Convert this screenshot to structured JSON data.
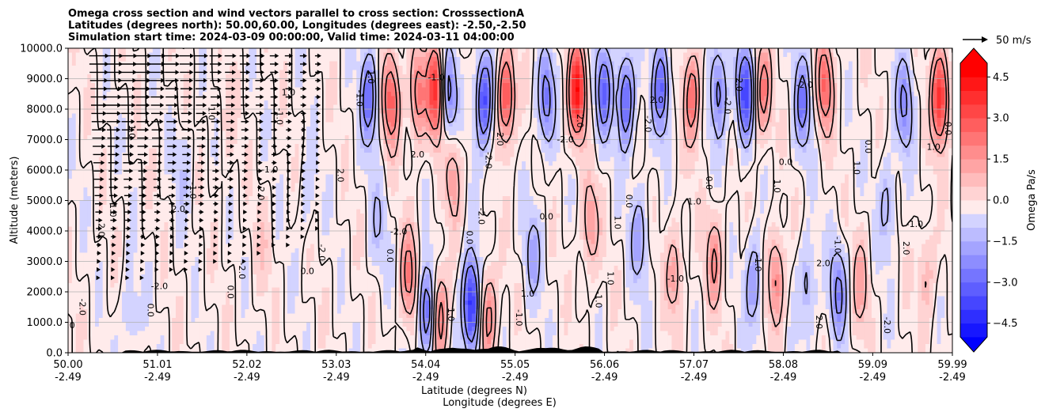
{
  "chart_data": {
    "type": "contourf",
    "title_lines": [
      "Omega cross section and wind vectors parallel to cross section: CrosssectionA",
      "Latitudes (degrees north): 50.00,60.00, Longitudes (degrees east): -2.50,-2.50",
      "Simulation start time: 2024-03-09 00:00:00, Valid time: 2024-03-11 04:00:00"
    ],
    "xlabel_lines": [
      "Latitude (degrees N)",
      "Longitude (degrees E)"
    ],
    "ylabel": "Altitude (meters)",
    "xlim": [
      50.0,
      59.99
    ],
    "ylim": [
      0,
      10000
    ],
    "x_ticks": [
      {
        "lat": "50.00",
        "lon": "-2.49",
        "v": 50.0
      },
      {
        "lat": "51.01",
        "lon": "-2.49",
        "v": 51.01
      },
      {
        "lat": "52.02",
        "lon": "-2.49",
        "v": 52.02
      },
      {
        "lat": "53.03",
        "lon": "-2.49",
        "v": 53.03
      },
      {
        "lat": "54.04",
        "lon": "-2.49",
        "v": 54.04
      },
      {
        "lat": "55.05",
        "lon": "-2.49",
        "v": 55.05
      },
      {
        "lat": "56.06",
        "lon": "-2.49",
        "v": 56.06
      },
      {
        "lat": "57.07",
        "lon": "-2.49",
        "v": 57.07
      },
      {
        "lat": "58.08",
        "lon": "-2.49",
        "v": 58.08
      },
      {
        "lat": "59.09",
        "lon": "-2.49",
        "v": 59.09
      },
      {
        "lat": "59.99",
        "lon": "-2.49",
        "v": 59.99
      }
    ],
    "y_ticks": [
      {
        "label": "0.0",
        "v": 0
      },
      {
        "label": "1000.0",
        "v": 1000
      },
      {
        "label": "2000.0",
        "v": 2000
      },
      {
        "label": "3000.0",
        "v": 3000
      },
      {
        "label": "4000.0",
        "v": 4000
      },
      {
        "label": "5000.0",
        "v": 5000
      },
      {
        "label": "6000.0",
        "v": 6000
      },
      {
        "label": "7000.0",
        "v": 7000
      },
      {
        "label": "8000.0",
        "v": 8000
      },
      {
        "label": "9000.0",
        "v": 9000
      },
      {
        "label": "10000.0",
        "v": 10000
      }
    ],
    "grid": "horizontal",
    "colorbar": {
      "label": "Omega Pa/s",
      "range": [
        -5.0,
        5.0
      ],
      "extend": "both",
      "ticks": [
        {
          "label": "4.5",
          "v": 4.5
        },
        {
          "label": "3.0",
          "v": 3.0
        },
        {
          "label": "1.5",
          "v": 1.5
        },
        {
          "label": "0.0",
          "v": 0.0
        },
        {
          "label": "−1.5",
          "v": -1.5
        },
        {
          "label": "−3.0",
          "v": -3.0
        },
        {
          "label": "−4.5",
          "v": -4.5
        }
      ],
      "colors": {
        "neg": "#0000ff",
        "zero": "#ffffff",
        "pos": "#ff0000"
      }
    },
    "quiver_key": {
      "label": "50 m/s",
      "value": 50
    },
    "contour_labels": [
      "0.0",
      "1.0",
      "-1.0",
      "2.0",
      "-2.0"
    ],
    "features": [
      {
        "lat": 53.4,
        "alt": 8400,
        "omega": -2.8
      },
      {
        "lat": 53.65,
        "alt": 8300,
        "omega": 3.2
      },
      {
        "lat": 53.95,
        "alt": 8500,
        "omega": 2.6
      },
      {
        "lat": 54.15,
        "alt": 8600,
        "omega": 4.2
      },
      {
        "lat": 54.3,
        "alt": 8500,
        "omega": -2.4
      },
      {
        "lat": 54.7,
        "alt": 8300,
        "omega": -3.6
      },
      {
        "lat": 54.95,
        "alt": 8400,
        "omega": 3.6
      },
      {
        "lat": 55.4,
        "alt": 8300,
        "omega": -2.5
      },
      {
        "lat": 55.75,
        "alt": 8600,
        "omega": 4.8
      },
      {
        "lat": 56.05,
        "alt": 8600,
        "omega": -2.8
      },
      {
        "lat": 56.3,
        "alt": 8300,
        "omega": -3.2
      },
      {
        "lat": 56.7,
        "alt": 8700,
        "omega": -2.9
      },
      {
        "lat": 57.05,
        "alt": 8400,
        "omega": 2.8
      },
      {
        "lat": 57.35,
        "alt": 8600,
        "omega": -2.5
      },
      {
        "lat": 57.65,
        "alt": 8500,
        "omega": -3.8
      },
      {
        "lat": 57.85,
        "alt": 8600,
        "omega": 2.5
      },
      {
        "lat": 58.3,
        "alt": 8200,
        "omega": -2.4
      },
      {
        "lat": 58.55,
        "alt": 8800,
        "omega": 3.0
      },
      {
        "lat": 59.45,
        "alt": 8200,
        "omega": -2.2
      },
      {
        "lat": 59.85,
        "alt": 8400,
        "omega": 4.4
      },
      {
        "lat": 53.5,
        "alt": 4200,
        "omega": -0.9
      },
      {
        "lat": 53.85,
        "alt": 2500,
        "omega": 2.4
      },
      {
        "lat": 54.05,
        "alt": 1400,
        "omega": -3.0
      },
      {
        "lat": 54.2,
        "alt": 1200,
        "omega": 2.6
      },
      {
        "lat": 54.55,
        "alt": 1600,
        "omega": -4.5
      },
      {
        "lat": 54.75,
        "alt": 1200,
        "omega": 2.4
      },
      {
        "lat": 54.35,
        "alt": 5800,
        "omega": 1.6
      },
      {
        "lat": 55.25,
        "alt": 3200,
        "omega": -1.4
      },
      {
        "lat": 55.9,
        "alt": 4200,
        "omega": 1.8
      },
      {
        "lat": 56.45,
        "alt": 3800,
        "omega": -1.6
      },
      {
        "lat": 56.85,
        "alt": 2600,
        "omega": 1.6
      },
      {
        "lat": 57.3,
        "alt": 3000,
        "omega": 2.0
      },
      {
        "lat": 57.75,
        "alt": 2300,
        "omega": -1.8
      },
      {
        "lat": 58.0,
        "alt": 2400,
        "omega": 2.3
      },
      {
        "lat": 58.35,
        "alt": 2200,
        "omega": -1.4
      },
      {
        "lat": 58.7,
        "alt": 2000,
        "omega": -2.2
      },
      {
        "lat": 58.95,
        "alt": 2300,
        "omega": 1.5
      },
      {
        "lat": 59.25,
        "alt": 4800,
        "omega": -1.3
      },
      {
        "lat": 59.7,
        "alt": 2600,
        "omega": 1.2
      },
      {
        "lat": 51.3,
        "alt": 6000,
        "omega": -0.7
      },
      {
        "lat": 52.2,
        "alt": 3500,
        "omega": 0.6
      },
      {
        "lat": 52.7,
        "alt": 5200,
        "omega": -0.6
      },
      {
        "lat": 50.7,
        "alt": 1200,
        "omega": -0.8
      },
      {
        "lat": 51.8,
        "alt": 7600,
        "omega": 0.5
      }
    ]
  }
}
